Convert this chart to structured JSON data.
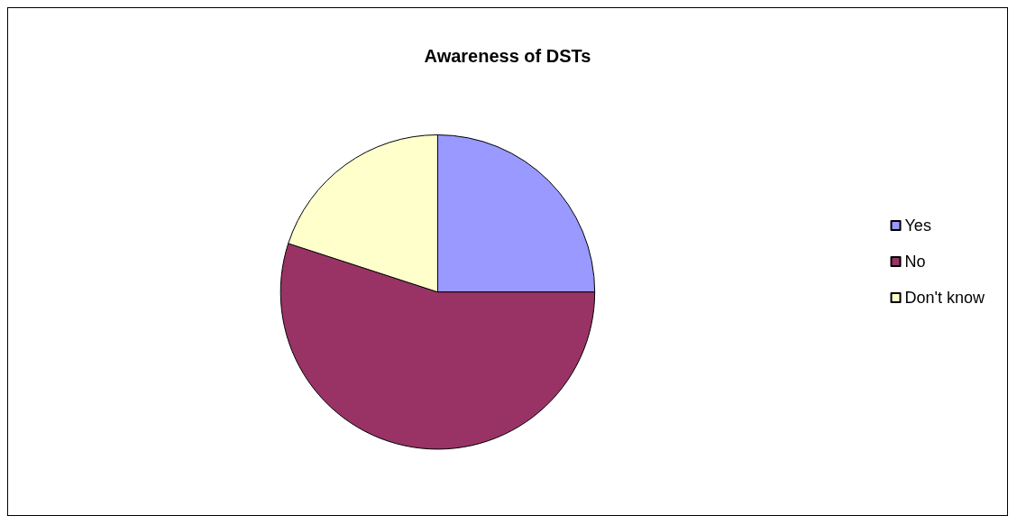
{
  "chart_data": {
    "type": "pie",
    "title": "Awareness of DSTs",
    "categories": [
      "Yes",
      "No",
      "Don't know"
    ],
    "values": [
      25,
      55,
      20
    ],
    "colors": [
      "#9999ff",
      "#993366",
      "#ffffcc"
    ],
    "legend": "right"
  }
}
